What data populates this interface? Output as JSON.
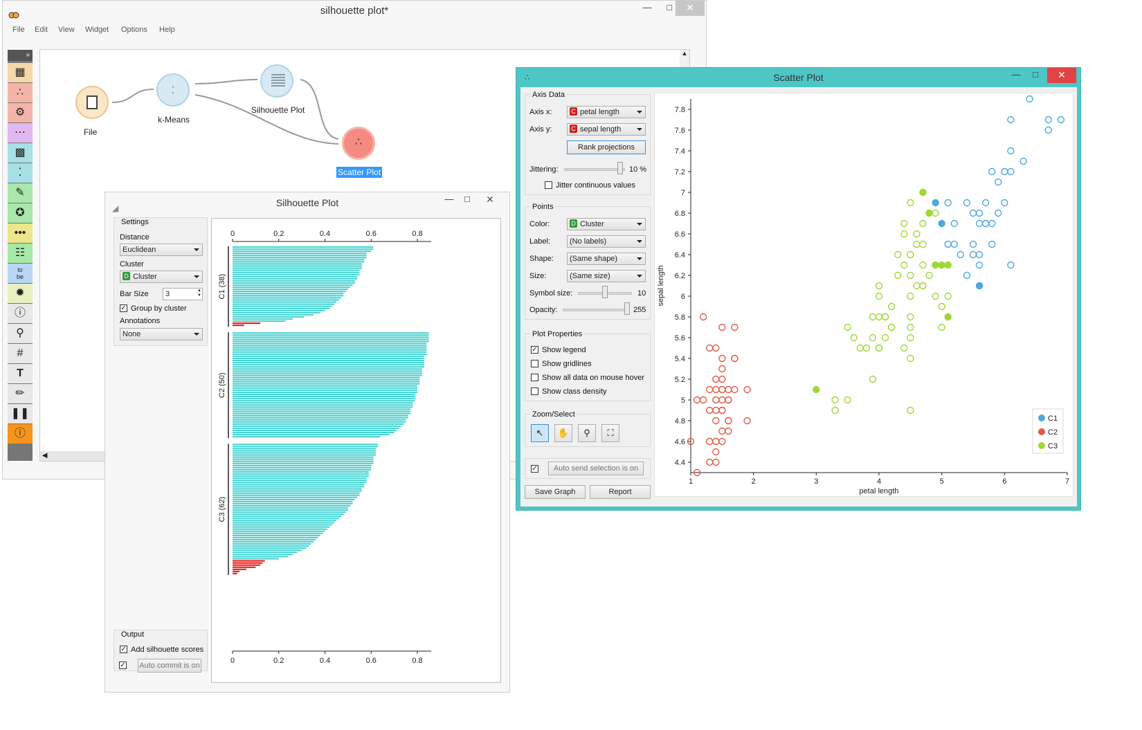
{
  "canvas": {
    "title": "silhouette plot*",
    "menu": [
      "File",
      "Edit",
      "View",
      "Widget",
      "Options",
      "Help"
    ],
    "nodes": [
      {
        "label": "File"
      },
      {
        "label": "k-Means"
      },
      {
        "label": "Silhouette Plot"
      },
      {
        "label": "Scatter Plot"
      }
    ],
    "toolbox_icons": [
      "data-table-icon",
      "scatter-plot-icon",
      "tree-icon",
      "linear-projection-icon",
      "heatmap-icon",
      "kmeans-icon",
      "paint-data-icon",
      "network-icon",
      "outliers-icon",
      "som-icon",
      "corpus-text-icon",
      "distribution-icon",
      "info-icon",
      "zoom-icon",
      "grid-icon",
      "text-icon",
      "pen-icon",
      "pause-icon",
      "help-icon"
    ]
  },
  "silhouette": {
    "title": "Silhouette Plot",
    "settings_title": "Settings",
    "distance_label": "Distance",
    "distance_value": "Euclidean",
    "cluster_label": "Cluster",
    "cluster_badge": "D",
    "cluster_value": "Cluster",
    "bar_size_label": "Bar Size",
    "bar_size_value": "3",
    "group_by_cluster_label": "Group by cluster",
    "annotations_label": "Annotations",
    "annotations_value": "None",
    "output_title": "Output",
    "add_scores_label": "Add silhouette scores",
    "auto_commit_label": "Auto commit is on",
    "bar_color": "#40d0d0",
    "negative_color": "#e81010"
  },
  "scatter": {
    "title": "Scatter Plot",
    "axis_data_title": "Axis Data",
    "axis_x_label": "Axis x:",
    "axis_x_badge": "C",
    "axis_x_value": "petal length",
    "axis_y_label": "Axis y:",
    "axis_y_badge": "C",
    "axis_y_value": "sepal length",
    "rank_button": "Rank projections",
    "jittering_label": "Jittering:",
    "jittering_value": "10 %",
    "jitter_continuous_label": "Jitter continuous values",
    "points_title": "Points",
    "color_label": "Color:",
    "color_badge": "D",
    "color_value": "Cluster",
    "label_label": "Label:",
    "label_value": "(No labels)",
    "shape_label": "Shape:",
    "shape_value": "(Same shape)",
    "size_label": "Size:",
    "size_value": "(Same size)",
    "symbol_size_label": "Symbol size:",
    "symbol_size_value": "10",
    "opacity_label": "Opacity:",
    "opacity_value": "255",
    "plot_props_title": "Plot Properties",
    "show_legend_label": "Show legend",
    "show_gridlines_label": "Show gridlines",
    "show_all_data_label": "Show all data on mouse hover",
    "show_class_density_label": "Show class density",
    "zoom_select_title": "Zoom/Select",
    "zoom_tools": [
      "select-arrow-icon",
      "pan-hand-icon",
      "zoom-magnifier-icon",
      "zoom-reset-icon"
    ],
    "auto_send_label": "Auto send selection is on",
    "save_graph_label": "Save Graph",
    "report_label": "Report",
    "accent_color": "#4ec6c6"
  },
  "chart_data": [
    {
      "type": "bar",
      "orientation": "horizontal",
      "xlim": [
        0,
        0.85
      ],
      "xticks": [
        "0",
        "0.2",
        "0.4",
        "0.6",
        "0.8"
      ],
      "groups": [
        {
          "label": "C1 (38)",
          "values": [
            0.61,
            0.61,
            0.6,
            0.58,
            0.58,
            0.58,
            0.57,
            0.57,
            0.56,
            0.56,
            0.56,
            0.55,
            0.55,
            0.55,
            0.54,
            0.54,
            0.53,
            0.53,
            0.52,
            0.51,
            0.5,
            0.49,
            0.48,
            0.48,
            0.47,
            0.46,
            0.45,
            0.44,
            0.43,
            0.42,
            0.4,
            0.38,
            0.35,
            0.31,
            0.26,
            0.23,
            0.12,
            0.05
          ]
        },
        {
          "label": "C2 (50)",
          "values": [
            0.85,
            0.85,
            0.85,
            0.85,
            0.85,
            0.84,
            0.84,
            0.84,
            0.84,
            0.84,
            0.84,
            0.83,
            0.83,
            0.83,
            0.83,
            0.83,
            0.83,
            0.82,
            0.82,
            0.82,
            0.82,
            0.81,
            0.81,
            0.81,
            0.81,
            0.8,
            0.8,
            0.8,
            0.8,
            0.79,
            0.79,
            0.79,
            0.79,
            0.78,
            0.78,
            0.78,
            0.77,
            0.77,
            0.77,
            0.76,
            0.76,
            0.75,
            0.75,
            0.74,
            0.73,
            0.72,
            0.71,
            0.7,
            0.68,
            0.64
          ]
        },
        {
          "label": "C3 (62)",
          "values": [
            0.63,
            0.63,
            0.62,
            0.62,
            0.62,
            0.62,
            0.61,
            0.61,
            0.61,
            0.61,
            0.6,
            0.6,
            0.6,
            0.59,
            0.59,
            0.59,
            0.58,
            0.58,
            0.58,
            0.57,
            0.57,
            0.56,
            0.56,
            0.55,
            0.55,
            0.54,
            0.53,
            0.52,
            0.52,
            0.51,
            0.5,
            0.5,
            0.49,
            0.48,
            0.47,
            0.46,
            0.45,
            0.44,
            0.43,
            0.42,
            0.41,
            0.4,
            0.39,
            0.38,
            0.37,
            0.36,
            0.35,
            0.34,
            0.33,
            0.32,
            0.3,
            0.28,
            0.26,
            0.24,
            0.2,
            0.14,
            0.13,
            0.12,
            0.1,
            0.06,
            0.03,
            0.02
          ]
        }
      ]
    },
    {
      "type": "scatter",
      "xlabel": "petal length",
      "ylabel": "sepal length",
      "xlim": [
        1,
        7
      ],
      "ylim": [
        4.3,
        7.9
      ],
      "xticks": [
        "1",
        "2",
        "3",
        "4",
        "5",
        "6",
        "7"
      ],
      "yticks": [
        "4.4",
        "4.6",
        "4.8",
        "5",
        "5.2",
        "5.4",
        "5.6",
        "5.8",
        "6",
        "6.2",
        "6.4",
        "6.6",
        "6.8",
        "7",
        "7.2",
        "7.4",
        "7.6",
        "7.8"
      ],
      "legend": "bottom-right",
      "series": [
        {
          "name": "C1",
          "color": "#4ba9e0",
          "points": [
            [
              6.4,
              7.9
            ],
            [
              6.7,
              7.7
            ],
            [
              6.9,
              7.7
            ],
            [
              6.1,
              7.7
            ],
            [
              6.7,
              7.6
            ],
            [
              6.1,
              7.4
            ],
            [
              6.3,
              7.3
            ],
            [
              5.8,
              7.2
            ],
            [
              6.0,
              7.2
            ],
            [
              6.1,
              7.2
            ],
            [
              5.9,
              7.1
            ],
            [
              5.1,
              6.9
            ],
            [
              5.4,
              6.9
            ],
            [
              5.7,
              6.9
            ],
            [
              6.0,
              6.9
            ],
            [
              5.6,
              6.8
            ],
            [
              5.9,
              6.8
            ],
            [
              5.5,
              6.8
            ],
            [
              5.8,
              6.7
            ],
            [
              5.6,
              6.7
            ],
            [
              5.7,
              6.7
            ],
            [
              5.2,
              6.7
            ],
            [
              5.7,
              6.7
            ],
            [
              5.1,
              6.5
            ],
            [
              5.2,
              6.5
            ],
            [
              5.5,
              6.5
            ],
            [
              5.8,
              6.5
            ],
            [
              5.3,
              6.4
            ],
            [
              5.5,
              6.4
            ],
            [
              5.6,
              6.4
            ],
            [
              5.6,
              6.3
            ],
            [
              6.1,
              6.3
            ],
            [
              5.4,
              6.2
            ],
            [
              5.6,
              6.1
            ]
          ],
          "filled": [
            [
              4.9,
              6.9
            ],
            [
              5.0,
              6.7
            ],
            [
              5.6,
              6.1
            ]
          ]
        },
        {
          "name": "C2",
          "color": "#e15a47",
          "points": [
            [
              1.2,
              5.8
            ],
            [
              1.5,
              5.7
            ],
            [
              1.7,
              5.7
            ],
            [
              1.3,
              5.5
            ],
            [
              1.4,
              5.5
            ],
            [
              1.5,
              5.4
            ],
            [
              1.7,
              5.4
            ],
            [
              1.7,
              5.4
            ],
            [
              1.5,
              5.3
            ],
            [
              1.4,
              5.2
            ],
            [
              1.5,
              5.2
            ],
            [
              1.3,
              5.1
            ],
            [
              1.4,
              5.1
            ],
            [
              1.5,
              5.1
            ],
            [
              1.5,
              5.1
            ],
            [
              1.6,
              5.1
            ],
            [
              1.7,
              5.1
            ],
            [
              1.9,
              5.1
            ],
            [
              1.1,
              5.0
            ],
            [
              1.2,
              5.0
            ],
            [
              1.4,
              5.0
            ],
            [
              1.5,
              5.0
            ],
            [
              1.6,
              5.0
            ],
            [
              1.6,
              5.0
            ],
            [
              1.3,
              4.9
            ],
            [
              1.4,
              4.9
            ],
            [
              1.5,
              4.9
            ],
            [
              1.5,
              4.9
            ],
            [
              1.4,
              4.8
            ],
            [
              1.6,
              4.8
            ],
            [
              1.6,
              4.8
            ],
            [
              1.9,
              4.8
            ],
            [
              1.5,
              4.7
            ],
            [
              1.6,
              4.7
            ],
            [
              1.3,
              4.6
            ],
            [
              1.4,
              4.6
            ],
            [
              1.5,
              4.6
            ],
            [
              1.0,
              4.6
            ],
            [
              1.4,
              4.5
            ],
            [
              1.3,
              4.4
            ],
            [
              1.4,
              4.4
            ],
            [
              1.1,
              4.3
            ]
          ]
        },
        {
          "name": "C3",
          "color": "#a0d838",
          "points": [
            [
              4.7,
              7.0
            ],
            [
              4.5,
              6.9
            ],
            [
              4.9,
              6.8
            ],
            [
              4.4,
              6.7
            ],
            [
              4.7,
              6.7
            ],
            [
              4.6,
              6.6
            ],
            [
              4.4,
              6.6
            ],
            [
              4.7,
              6.5
            ],
            [
              4.6,
              6.5
            ],
            [
              4.5,
              6.4
            ],
            [
              4.3,
              6.4
            ],
            [
              4.9,
              6.3
            ],
            [
              4.4,
              6.3
            ],
            [
              4.7,
              6.3
            ],
            [
              4.5,
              6.2
            ],
            [
              4.3,
              6.2
            ],
            [
              4.8,
              6.2
            ],
            [
              4.7,
              6.1
            ],
            [
              4.0,
              6.1
            ],
            [
              4.7,
              6.1
            ],
            [
              4.6,
              6.1
            ],
            [
              4.9,
              6.0
            ],
            [
              4.5,
              6.0
            ],
            [
              5.1,
              6.0
            ],
            [
              4.0,
              6.0
            ],
            [
              5.0,
              5.9
            ],
            [
              4.2,
              5.9
            ],
            [
              4.5,
              5.8
            ],
            [
              4.1,
              5.8
            ],
            [
              3.9,
              5.8
            ],
            [
              4.0,
              5.8
            ],
            [
              4.1,
              5.8
            ],
            [
              5.0,
              5.7
            ],
            [
              4.2,
              5.7
            ],
            [
              4.5,
              5.7
            ],
            [
              3.5,
              5.7
            ],
            [
              4.2,
              5.7
            ],
            [
              3.9,
              5.6
            ],
            [
              4.5,
              5.6
            ],
            [
              3.6,
              5.6
            ],
            [
              4.1,
              5.6
            ],
            [
              4.0,
              5.5
            ],
            [
              3.7,
              5.5
            ],
            [
              3.8,
              5.5
            ],
            [
              4.4,
              5.5
            ],
            [
              4.0,
              5.5
            ],
            [
              4.5,
              5.4
            ],
            [
              3.9,
              5.2
            ],
            [
              3.3,
              5.0
            ],
            [
              3.5,
              5.0
            ],
            [
              3.3,
              4.9
            ],
            [
              4.5,
              4.9
            ]
          ],
          "filled": [
            [
              3.0,
              5.1
            ],
            [
              4.7,
              7.0
            ],
            [
              4.8,
              6.8
            ],
            [
              5.0,
              6.3
            ],
            [
              5.1,
              6.3
            ],
            [
              4.9,
              6.3
            ],
            [
              5.1,
              5.8
            ]
          ]
        }
      ]
    }
  ]
}
